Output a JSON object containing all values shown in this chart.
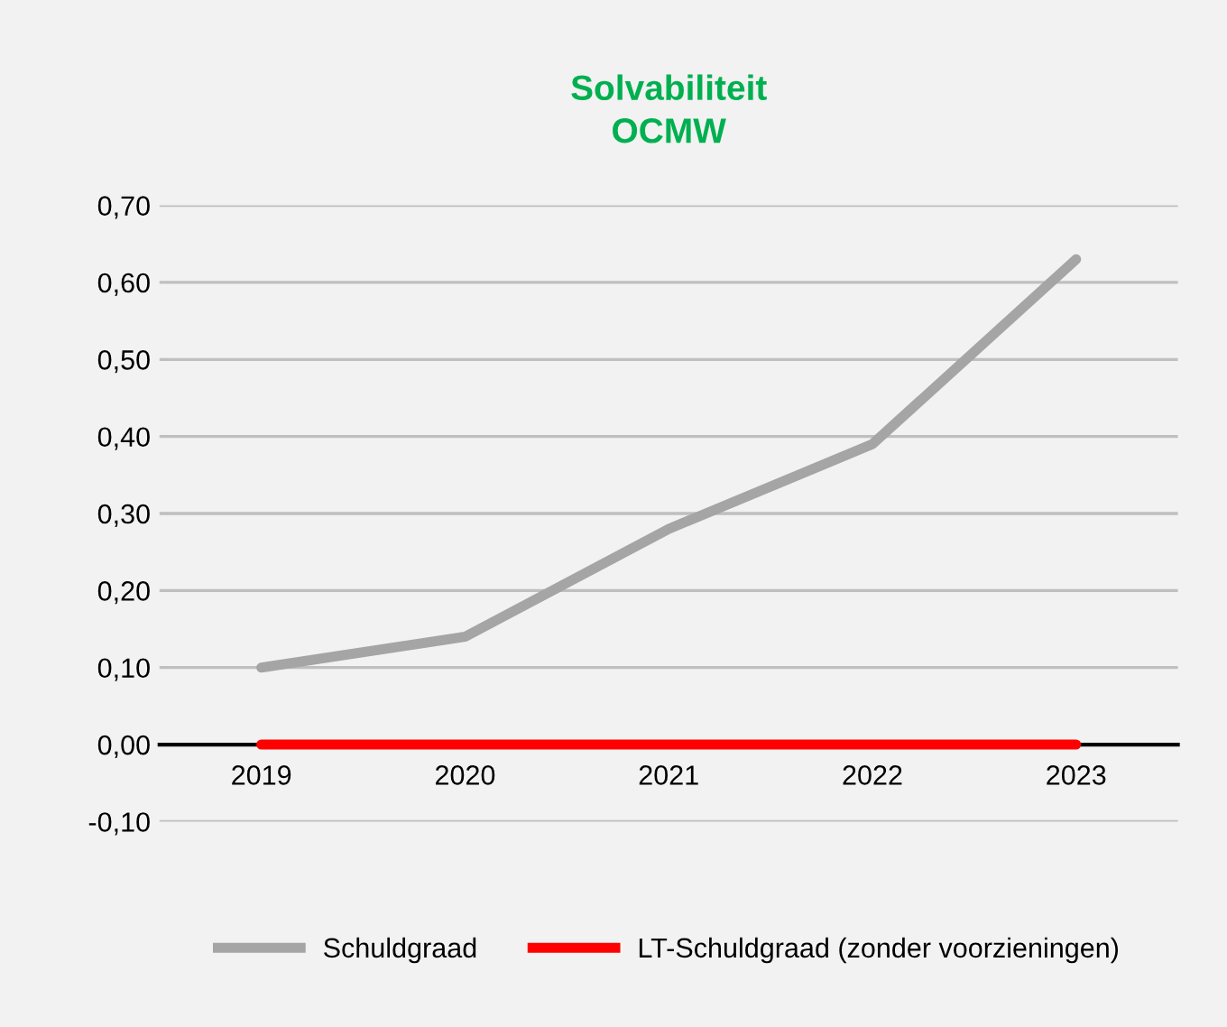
{
  "chart_data": {
    "type": "line",
    "title": "Solvabiliteit\nOCMW",
    "categories": [
      "2019",
      "2020",
      "2021",
      "2022",
      "2023"
    ],
    "series": [
      {
        "name": "Schuldgraad",
        "color": "#a5a5a5",
        "values": [
          0.1,
          0.14,
          0.28,
          0.39,
          0.63
        ]
      },
      {
        "name": "LT-Schuldgraad (zonder voorzieningen)",
        "color": "#ff0000",
        "values": [
          0.0,
          0.0,
          0.0,
          0.0,
          0.0
        ]
      }
    ],
    "ylim": [
      -0.1,
      0.7
    ],
    "yticks": [
      {
        "value": -0.1,
        "label": "-0,10"
      },
      {
        "value": 0,
        "label": "0,00"
      },
      {
        "value": 0.1,
        "label": "0,10"
      },
      {
        "value": 0.2,
        "label": "0,20"
      },
      {
        "value": 0.3,
        "label": "0,30"
      },
      {
        "value": 0.4,
        "label": "0,40"
      },
      {
        "value": 0.5,
        "label": "0,50"
      },
      {
        "value": 0.6,
        "label": "0,60"
      },
      {
        "value": 0.7,
        "label": "0,70"
      }
    ],
    "grid": "y",
    "legend": "bottom",
    "marker": "none",
    "line_style": "solid"
  }
}
